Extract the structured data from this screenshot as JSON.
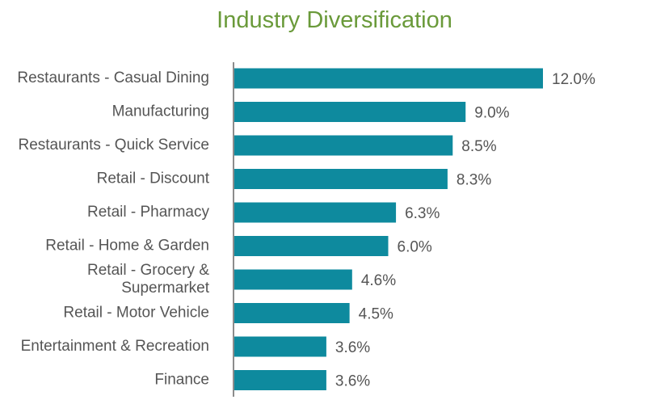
{
  "colors": {
    "bar": "#0e8a9e",
    "title": "#6a9a3a",
    "text": "#555555",
    "axis": "#8c8c8c"
  },
  "chart_data": {
    "type": "bar",
    "orientation": "horizontal",
    "title": "Industry Diversification",
    "xlabel": "",
    "ylabel": "",
    "xlim": [
      0,
      12.0
    ],
    "grid": false,
    "legend": "none",
    "categories": [
      [
        "Restaurants - Casual Dining"
      ],
      [
        "Manufacturing"
      ],
      [
        "Restaurants - Quick Service"
      ],
      [
        "Retail - Discount"
      ],
      [
        "Retail - Pharmacy"
      ],
      [
        "Retail - Home & Garden"
      ],
      [
        "Retail - Grocery &",
        "Supermarket"
      ],
      [
        "Retail - Motor Vehicle"
      ],
      [
        "Entertainment & Recreation"
      ],
      [
        "Finance"
      ]
    ],
    "values": [
      12.0,
      9.0,
      8.5,
      8.3,
      6.3,
      6.0,
      4.6,
      4.5,
      3.6,
      3.6
    ],
    "value_labels": [
      "12.0%",
      "9.0%",
      "8.5%",
      "8.3%",
      "6.3%",
      "6.0%",
      "4.6%",
      "4.5%",
      "3.6%",
      "3.6%"
    ]
  }
}
